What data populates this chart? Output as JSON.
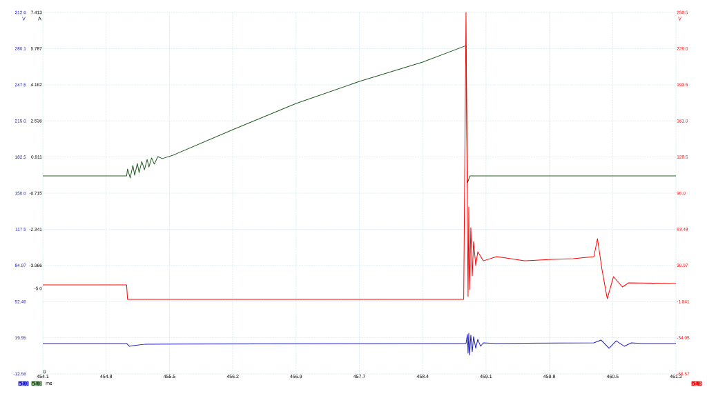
{
  "chart_data": {
    "type": "line",
    "xlabel": "ms",
    "ylabel": "V",
    "y3label": "A",
    "y2label": "V",
    "xlim": [
      454.1,
      461.2
    ],
    "xticks": [
      454.1,
      {
        "value": 454.81,
        "label": "454.8"
      },
      {
        "value": 455.52,
        "label": "455.5"
      },
      {
        "value": 456.23,
        "label": "456.2"
      },
      {
        "value": 456.94,
        "label": "456.9"
      },
      {
        "value": 457.65,
        "label": "457.7"
      },
      {
        "value": 458.36,
        "label": "458.4"
      },
      {
        "value": 459.07,
        "label": "459.1"
      },
      {
        "value": 459.78,
        "label": "459.8"
      },
      {
        "value": 460.49,
        "label": "460.5"
      },
      461.2
    ],
    "ylim": [
      -12.56,
      312.6
    ],
    "yticks": [
      312.6,
      280.1,
      247.5,
      {
        "value": 215,
        "label": "215.0"
      },
      182.5,
      {
        "value": 150,
        "label": "150.0"
      },
      117.5,
      84.97,
      52.46,
      19.95,
      -12.56
    ],
    "y3lim": [
      -8.844,
      7.413
    ],
    "y3ticks": [
      7.413,
      5.787,
      4.162,
      2.536,
      0.911,
      -0.715,
      -2.341,
      -3.966,
      {
        "value": -5,
        "label": "-5.0"
      }
    ],
    "y2lim": [
      -66.57,
      258.5
    ],
    "y2ticks": [
      258.5,
      {
        "value": 226,
        "label": "226.0"
      },
      193.5,
      {
        "value": 161,
        "label": "161.0"
      },
      128.5,
      {
        "value": 96,
        "label": "96.0"
      },
      63.48,
      30.97,
      -1.541,
      -34.05,
      -66.57
    ],
    "grid": true,
    "series": [
      {
        "color": "#1c1cc8",
        "axis": "y",
        "x": [
          454.1,
          455.04,
          455.07,
          455.13,
          455.25,
          458.82,
          458.846,
          458.862,
          458.869,
          458.877,
          458.885,
          458.9,
          458.916,
          458.931,
          458.955,
          458.978,
          459.009,
          459.04,
          459.19,
          460.28,
          460.36,
          460.45,
          460.53,
          460.62,
          460.7,
          460.82,
          461.2
        ],
        "values": [
          14.8,
          14.8,
          12.3,
          13.0,
          14.2,
          14.8,
          14.8,
          22.9,
          6.1,
          24.1,
          4.3,
          22.3,
          7.4,
          21.0,
          10.5,
          18.5,
          12.3,
          15.4,
          14.8,
          15.4,
          17.9,
          10.5,
          17.2,
          12.3,
          15.4,
          14.8,
          14.8
        ]
      },
      {
        "color": "#1f5a1f",
        "axis": "y3",
        "x": [
          454.1,
          455.04,
          455.05,
          455.08,
          455.11,
          455.13,
          455.16,
          455.18,
          455.21,
          455.24,
          455.27,
          455.29,
          455.32,
          455.35,
          455.39,
          455.44,
          455.56,
          456.23,
          456.94,
          457.65,
          458.36,
          458.846,
          458.862,
          458.89,
          459.5,
          460.3,
          461.2
        ],
        "values": [
          0.06,
          0.06,
          0.37,
          -0.03,
          0.53,
          0.09,
          0.62,
          0.21,
          0.71,
          0.34,
          0.8,
          0.46,
          0.87,
          0.59,
          0.93,
          0.84,
          0.99,
          2.14,
          3.32,
          4.31,
          5.18,
          5.92,
          -0.25,
          0.06,
          0.06,
          0.06,
          0.06
        ]
      },
      {
        "color": "#ff0000",
        "axis": "y2",
        "x": [
          454.1,
          455.04,
          455.05,
          458.82,
          458.846,
          458.862,
          458.869,
          458.877,
          458.885,
          458.9,
          458.916,
          458.931,
          458.955,
          458.978,
          459.04,
          459.19,
          459.5,
          459.81,
          460.05,
          460.28,
          460.32,
          460.37,
          460.43,
          460.5,
          460.6,
          460.67,
          461.2
        ],
        "values": [
          13.4,
          13.4,
          0.4,
          0.4,
          258.5,
          64.9,
          2.9,
          83.5,
          9.1,
          64.9,
          21.5,
          52.5,
          30.8,
          43.2,
          35.1,
          38.9,
          35.1,
          36.4,
          37.0,
          38.9,
          55.0,
          27.7,
          1.0,
          20.9,
          11.6,
          15.3,
          14.7
        ]
      }
    ],
    "annotations": [
      "0",
      "x1.0",
      "x1.0",
      "x1.0"
    ]
  }
}
